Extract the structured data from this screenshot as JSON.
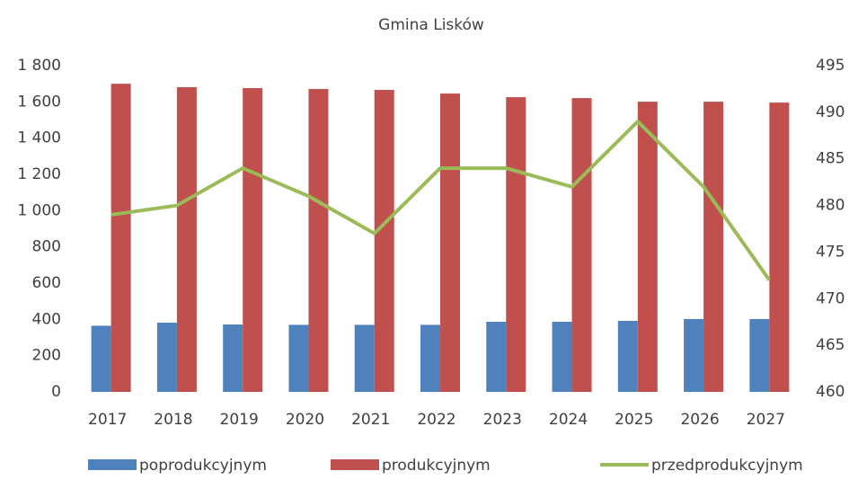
{
  "chart_data": {
    "type": "bar-line",
    "title": "Gmina Lisków",
    "categories": [
      "2017",
      "2018",
      "2019",
      "2020",
      "2021",
      "2022",
      "2023",
      "2024",
      "2025",
      "2026",
      "2027"
    ],
    "series": [
      {
        "name": "poprodukcyjnym",
        "color": "#4f81bd",
        "type": "bar",
        "values": [
          365,
          382,
          372,
          370,
          370,
          370,
          387,
          387,
          392,
          402,
          402
        ]
      },
      {
        "name": "produkcyjnym",
        "color": "#c0504d",
        "type": "bar",
        "values": [
          1700,
          1681,
          1676,
          1671,
          1666,
          1646,
          1626,
          1621,
          1601,
          1601,
          1596
        ]
      },
      {
        "name": "przedprodukcyjnym",
        "color": "#9bbb59",
        "type": "line",
        "axis": "y2",
        "values": [
          479,
          480,
          484,
          481,
          477,
          484,
          484,
          482,
          489,
          482,
          472
        ]
      }
    ],
    "ylim": [
      0,
      1800
    ],
    "yticks": [
      0,
      200,
      400,
      600,
      800,
      {
        "value": 1000,
        "label": "1 000"
      },
      {
        "value": 1200,
        "label": "1 200"
      },
      {
        "value": 1400,
        "label": "1 400"
      },
      {
        "value": 1600,
        "label": "1 600"
      },
      {
        "value": 1800,
        "label": "1 800"
      }
    ],
    "y2lim": [
      460,
      495
    ],
    "y2ticks": [
      460,
      465,
      470,
      475,
      480,
      485,
      490,
      495
    ],
    "legend": "bottom"
  }
}
